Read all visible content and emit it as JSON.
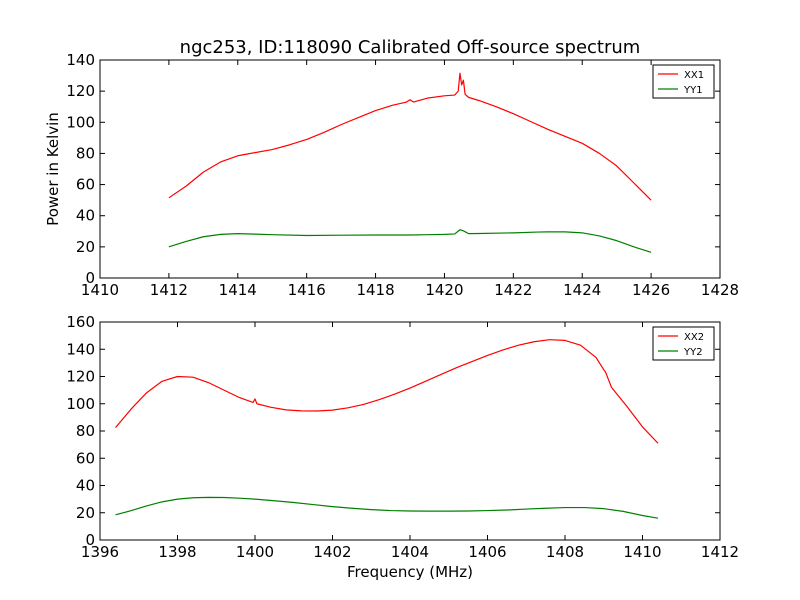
{
  "figure": {
    "title": "ngc253, ID:118090 Calibrated Off-source spectrum",
    "ylabel": "Power in Kelvin",
    "xlabel": "Frequency (MHz)"
  },
  "chart_data": [
    {
      "type": "line",
      "title": "ngc253, ID:118090 Calibrated Off-source spectrum",
      "xlabel": "",
      "ylabel": "Power in Kelvin",
      "xlim": [
        1410,
        1428
      ],
      "ylim": [
        0,
        140
      ],
      "xticks": [
        "1410",
        "1412",
        "1414",
        "1416",
        "1418",
        "1420",
        "1422",
        "1424",
        "1426",
        "1428"
      ],
      "yticks": [
        "0",
        "20",
        "40",
        "60",
        "80",
        "100",
        "120",
        "140"
      ],
      "grid": false,
      "legend": "top-right",
      "series": [
        {
          "name": "XX1",
          "color": "#ff0000",
          "x": [
            1412.0,
            1412.5,
            1413.0,
            1413.5,
            1414.0,
            1414.5,
            1415.0,
            1415.5,
            1416.0,
            1416.5,
            1417.0,
            1417.5,
            1418.0,
            1418.5,
            1418.9,
            1419.0,
            1419.1,
            1419.5,
            1420.0,
            1420.3,
            1420.4,
            1420.45,
            1420.5,
            1420.55,
            1420.6,
            1420.7,
            1421.0,
            1421.5,
            1422.0,
            1422.5,
            1423.0,
            1423.5,
            1424.0,
            1424.5,
            1425.0,
            1425.5,
            1426.0
          ],
          "y": [
            51.5,
            59,
            68,
            74.5,
            78.5,
            80.5,
            82.5,
            85.5,
            89,
            93.5,
            98.5,
            103,
            107.5,
            111,
            113,
            114.5,
            113,
            115.5,
            117,
            117.5,
            120,
            131.5,
            124,
            127,
            118,
            116,
            114,
            110,
            105.5,
            100.5,
            95.5,
            91,
            86.5,
            80,
            72,
            61,
            50
          ]
        },
        {
          "name": "YY1",
          "color": "#008000",
          "x": [
            1412.0,
            1412.5,
            1413.0,
            1413.5,
            1414.0,
            1414.5,
            1415.0,
            1416.0,
            1417.0,
            1418.0,
            1419.0,
            1419.5,
            1420.0,
            1420.3,
            1420.45,
            1420.55,
            1420.7,
            1421.0,
            1422.0,
            1422.7,
            1423.0,
            1423.5,
            1424.0,
            1424.5,
            1425.0,
            1425.5,
            1426.0
          ],
          "y": [
            20,
            23.5,
            26.5,
            28,
            28.5,
            28.2,
            27.8,
            27.3,
            27.5,
            27.6,
            27.6,
            27.8,
            28,
            28.3,
            31,
            30.3,
            28.5,
            28.6,
            29,
            29.5,
            29.6,
            29.6,
            29,
            27,
            24,
            20,
            16.5
          ]
        }
      ]
    },
    {
      "type": "line",
      "title": "",
      "xlabel": "Frequency (MHz)",
      "ylabel": "",
      "xlim": [
        1396,
        1412
      ],
      "ylim": [
        0,
        160
      ],
      "xticks": [
        "1396",
        "1398",
        "1400",
        "1402",
        "1404",
        "1406",
        "1408",
        "1410",
        "1412"
      ],
      "yticks": [
        "0",
        "20",
        "40",
        "60",
        "80",
        "100",
        "120",
        "140",
        "160"
      ],
      "grid": false,
      "legend": "top-right",
      "series": [
        {
          "name": "XX2",
          "color": "#ff0000",
          "x": [
            1396.4,
            1396.8,
            1397.2,
            1397.6,
            1398.0,
            1398.4,
            1398.8,
            1399.2,
            1399.6,
            1399.95,
            1400.0,
            1400.05,
            1400.4,
            1400.8,
            1401.2,
            1401.6,
            1402.0,
            1402.4,
            1402.8,
            1403.2,
            1403.6,
            1404.0,
            1404.4,
            1404.8,
            1405.2,
            1405.6,
            1406.0,
            1406.4,
            1406.8,
            1407.2,
            1407.6,
            1408.0,
            1408.4,
            1408.8,
            1409.0,
            1409.05,
            1409.2,
            1409.6,
            1410.0,
            1410.4
          ],
          "y": [
            82.5,
            96,
            108,
            116.5,
            120,
            119.5,
            115.5,
            110,
            104.5,
            101,
            103.5,
            100,
            97.5,
            95.5,
            94.8,
            94.7,
            95.3,
            97,
            99.5,
            103,
            107,
            111.5,
            116.5,
            121.5,
            126.5,
            131,
            135.5,
            139.5,
            143,
            145.5,
            147,
            146.5,
            143,
            134,
            125,
            123,
            112,
            98,
            83,
            71
          ]
        },
        {
          "name": "YY2",
          "color": "#008000",
          "x": [
            1396.4,
            1396.8,
            1397.2,
            1397.6,
            1398.0,
            1398.4,
            1398.8,
            1399.2,
            1399.6,
            1400.0,
            1400.5,
            1401.0,
            1401.5,
            1402.0,
            1402.5,
            1403.0,
            1403.5,
            1404.0,
            1404.5,
            1405.0,
            1405.5,
            1406.0,
            1406.5,
            1407.0,
            1407.5,
            1408.0,
            1408.5,
            1409.0,
            1409.5,
            1410.0,
            1410.4
          ],
          "y": [
            18.5,
            21.5,
            25,
            28,
            30,
            31,
            31.3,
            31.2,
            30.7,
            30,
            28.8,
            27.5,
            26,
            24.5,
            23.3,
            22.3,
            21.6,
            21.3,
            21.2,
            21.2,
            21.3,
            21.6,
            22,
            22.7,
            23.3,
            23.8,
            23.8,
            23,
            21,
            18,
            16
          ]
        }
      ]
    }
  ]
}
